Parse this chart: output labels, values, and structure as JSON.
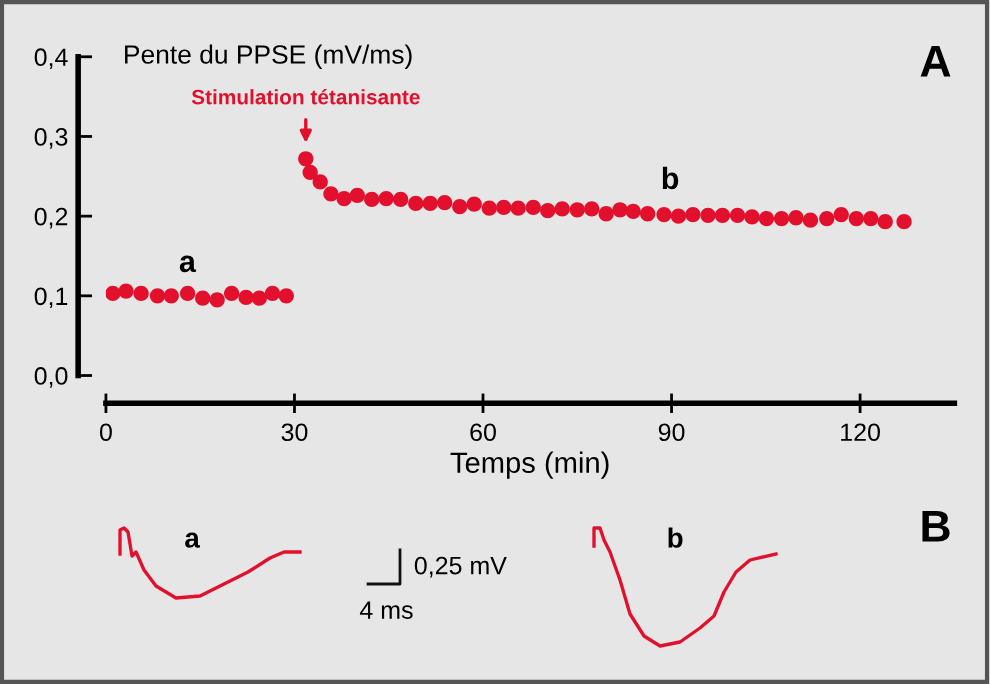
{
  "chart_data": {
    "type": "scatter",
    "ylabel": "Pente du PPSE (mV/ms)",
    "xlabel": "Temps (min)",
    "xlim": [
      0,
      135
    ],
    "ylim": [
      0,
      0.4
    ],
    "xticks": [
      0,
      30,
      60,
      90,
      120
    ],
    "yticks": [
      {
        "value": 0,
        "label": "0,0"
      },
      {
        "value": 0.1,
        "label": "0,1"
      },
      {
        "value": 0.2,
        "label": "0,2"
      },
      {
        "value": 0.3,
        "label": "0,3"
      },
      {
        "value": 0.4,
        "label": "0,4"
      }
    ],
    "grid": false,
    "marker": "circle",
    "series": [
      {
        "color": "#e2102c",
        "x": [
          1.1,
          3.2,
          5.6,
          8.2,
          10.4,
          13.0,
          15.4,
          17.7,
          20.0,
          22.3,
          24.4,
          26.5,
          28.7
        ],
        "values": [
          0.103,
          0.106,
          0.103,
          0.1,
          0.1,
          0.103,
          0.097,
          0.095,
          0.103,
          0.098,
          0.097,
          0.103,
          0.1
        ]
      },
      {
        "color": "#e2102c",
        "x": [
          31.8,
          32.5,
          34.1,
          35.8,
          37.9,
          40.0,
          42.3,
          44.6,
          46.9,
          49.3,
          51.6,
          53.9,
          56.3,
          58.6,
          61.0,
          63.3,
          65.6,
          68.0,
          70.3,
          72.6,
          75.0,
          77.3,
          79.6,
          81.8,
          83.9,
          86.2,
          88.8,
          91.1,
          93.4,
          95.8,
          98.1,
          100.5,
          102.8,
          105.1,
          107.5,
          109.8,
          112.1,
          114.7,
          117.0,
          119.4,
          121.7,
          124.0,
          127.0
        ],
        "values": [
          0.272,
          0.255,
          0.243,
          0.228,
          0.222,
          0.226,
          0.221,
          0.222,
          0.221,
          0.216,
          0.216,
          0.217,
          0.212,
          0.215,
          0.21,
          0.211,
          0.21,
          0.211,
          0.207,
          0.209,
          0.208,
          0.209,
          0.203,
          0.208,
          0.206,
          0.203,
          0.202,
          0.2,
          0.202,
          0.201,
          0.201,
          0.201,
          0.199,
          0.197,
          0.197,
          0.198,
          0.195,
          0.197,
          0.202,
          0.197,
          0.197,
          0.193,
          0.193
        ]
      }
    ],
    "annotations": [
      {
        "text": "Stimulation tétanisante",
        "x": 31.8,
        "y": 0.285
      },
      "a",
      "b",
      "A",
      "B",
      "a",
      "b",
      "0,25 mV",
      "4 ms"
    ]
  }
}
